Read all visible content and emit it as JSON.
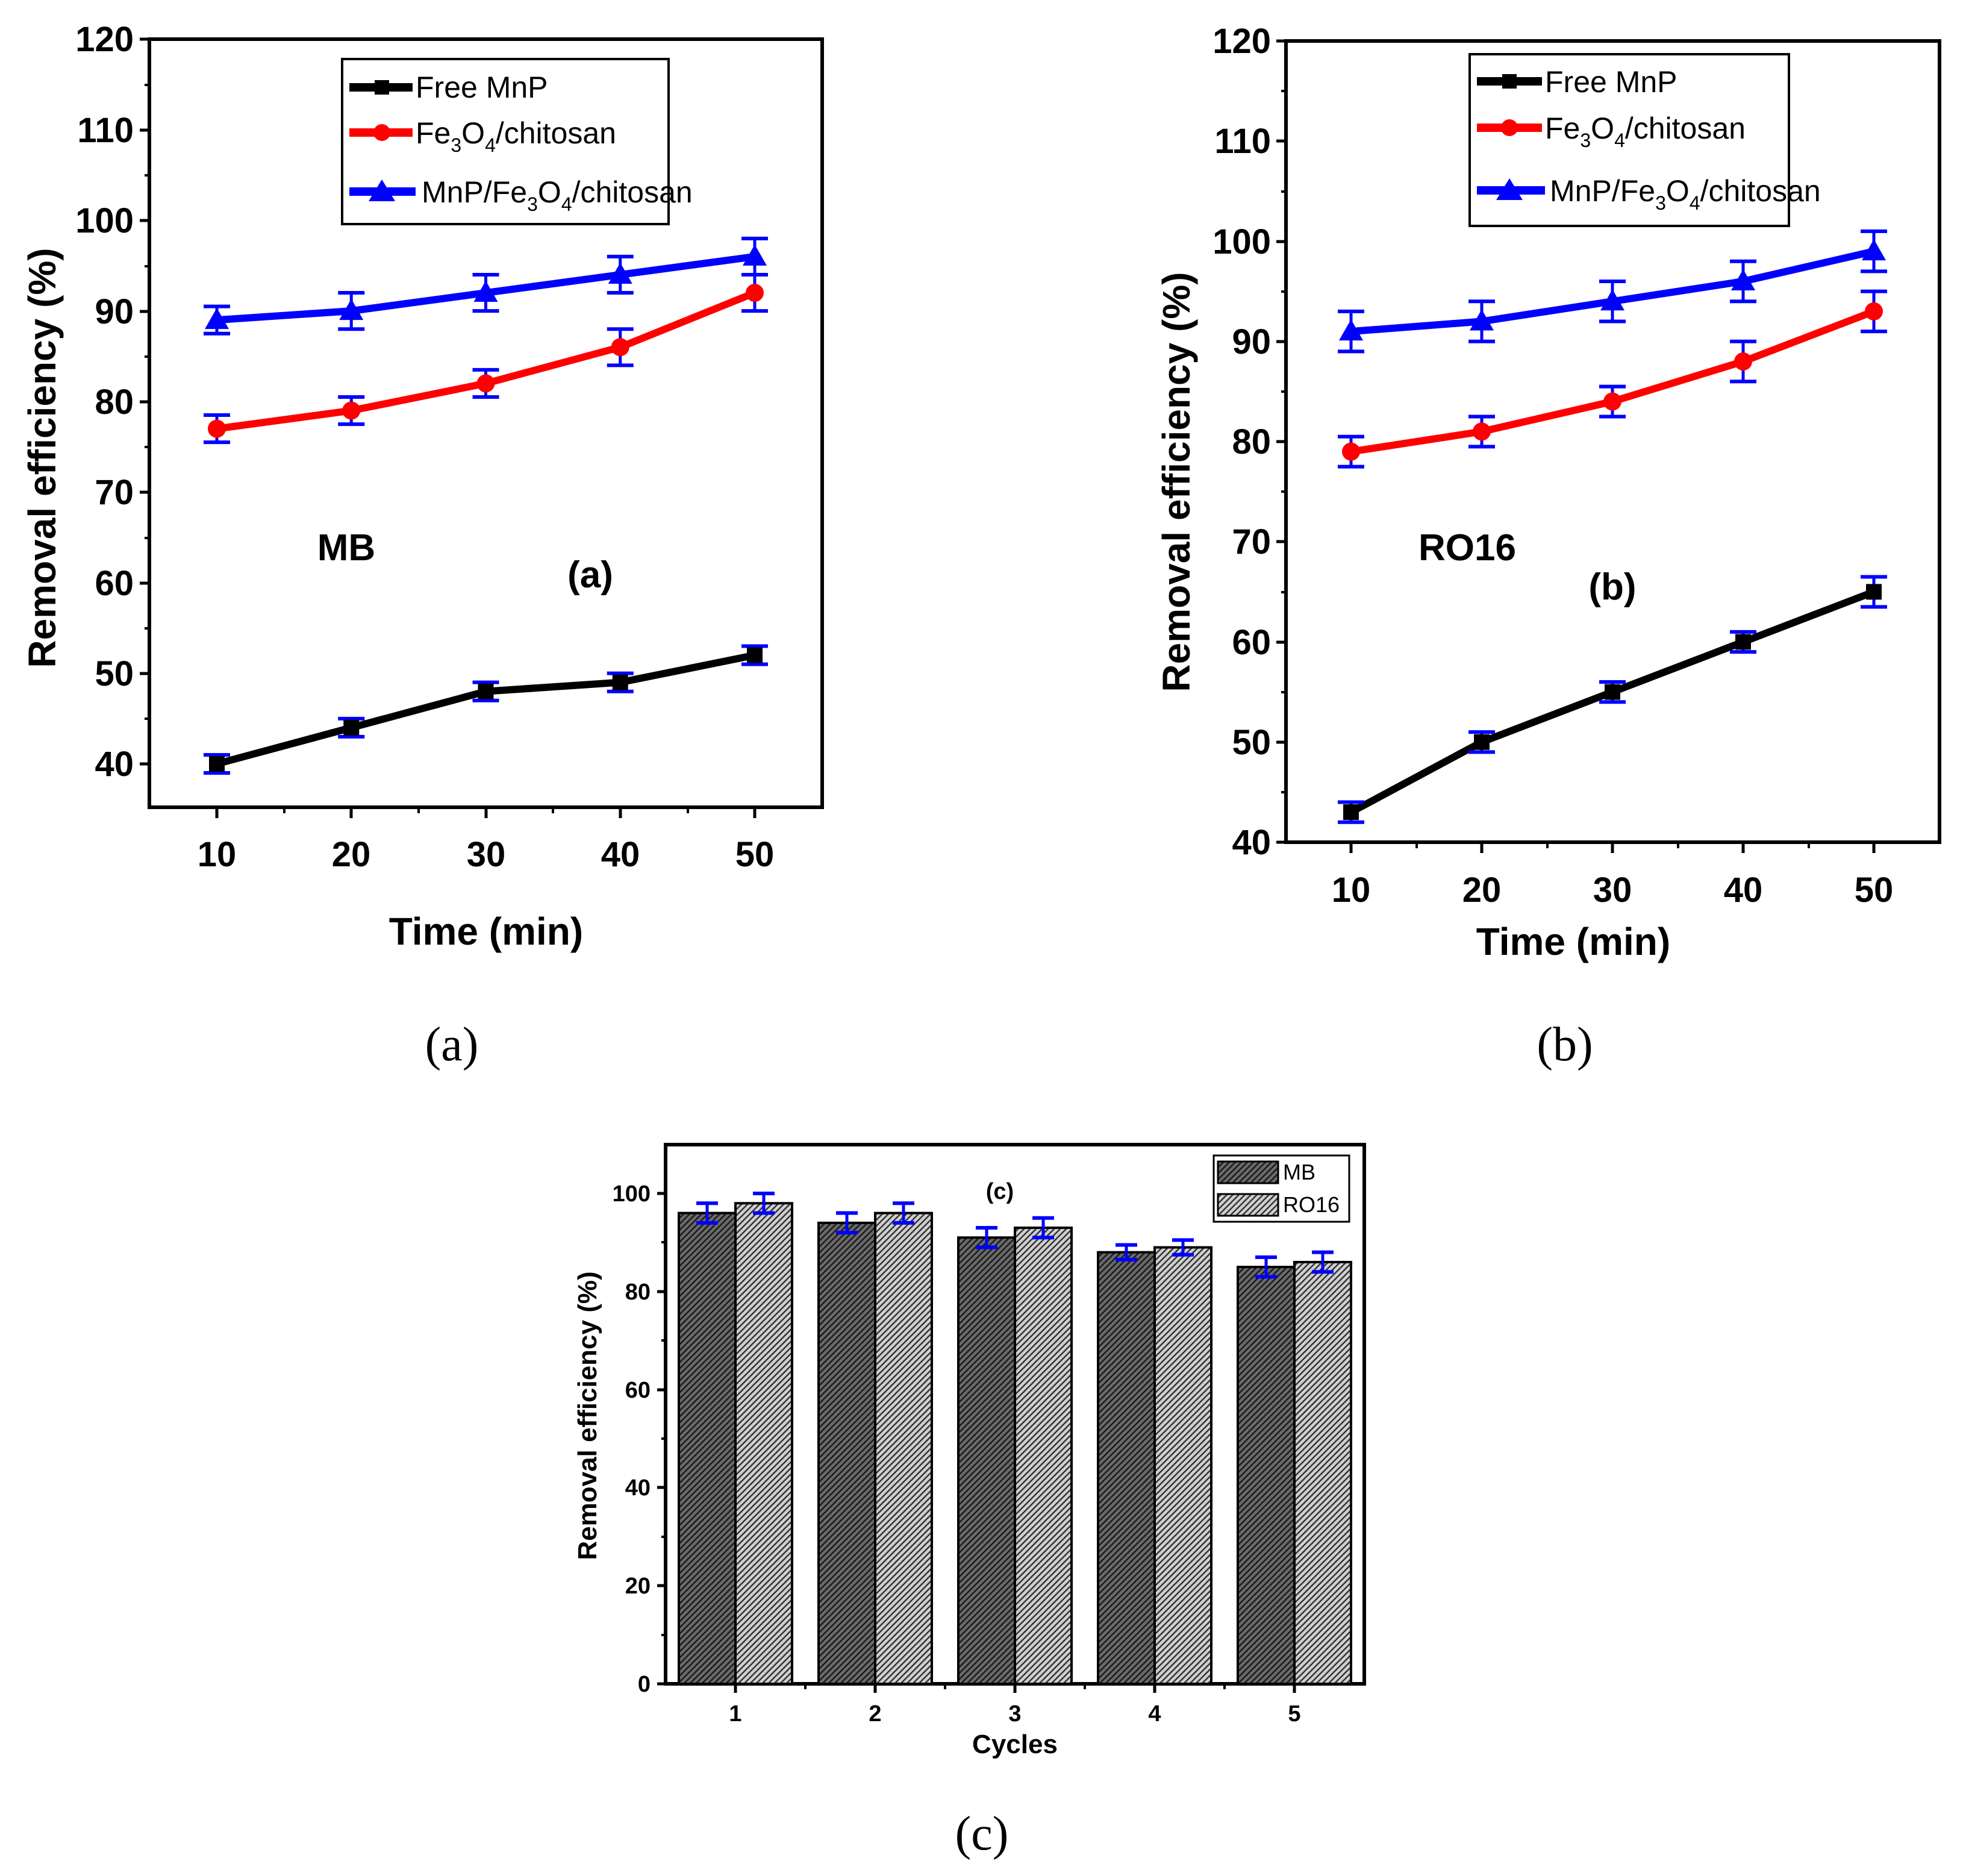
{
  "colors": {
    "free_mnp": "#000000",
    "fe3o4_chitosan": "#ff0000",
    "mnp_fe3o4_chitosan": "#0000ff",
    "error_bar": "#0000ff",
    "mb_bar": "#555555",
    "ro16_bar": "#bbbbbb"
  },
  "captions": {
    "a": "(a)",
    "b": "(b)",
    "c": "(c)"
  },
  "chart_data": [
    {
      "type": "line",
      "panel": "a",
      "xlabel": "Time (min)",
      "ylabel": "Removal efficiency (%)",
      "annotation": "MB",
      "panel_tag": "(a)",
      "x": [
        10,
        20,
        30,
        40,
        50
      ],
      "xticks": [
        "10",
        "20",
        "30",
        "40",
        "50"
      ],
      "xlim": [
        5,
        55
      ],
      "ylim": [
        35,
        120
      ],
      "yticks": [
        "40",
        "50",
        "60",
        "70",
        "80",
        "90",
        "100",
        "110",
        "120"
      ],
      "legend": {
        "entries": [
          "Free MnP",
          "Fe3O4/chitosan",
          "MnP/Fe3O4/chitosan"
        ],
        "line1": "Free MnP",
        "line2_a": "Fe",
        "line2_sub1": "3",
        "line2_b": "O",
        "line2_sub2": "4",
        "line2_c": "/chitosan",
        "line3_a": "MnP/Fe",
        "line3_sub1": "3",
        "line3_b": "O",
        "line3_sub2": "4",
        "line3_c": "/chitosan"
      },
      "series": [
        {
          "name": "Free MnP",
          "values": [
            40,
            44,
            48,
            49,
            52
          ],
          "errors": [
            1,
            1,
            1,
            1,
            1
          ]
        },
        {
          "name": "Fe3O4/chitosan",
          "values": [
            77,
            79,
            82,
            86,
            92
          ],
          "errors": [
            1.5,
            1.5,
            1.5,
            2,
            2
          ]
        },
        {
          "name": "MnP/Fe3O4/chitosan",
          "values": [
            89,
            90,
            92,
            94,
            96
          ],
          "errors": [
            1.5,
            2,
            2,
            2,
            2
          ]
        }
      ]
    },
    {
      "type": "line",
      "panel": "b",
      "xlabel": "Time (min)",
      "ylabel": "Removal efficiency (%)",
      "annotation": "RO16",
      "panel_tag": "(b)",
      "x": [
        10,
        20,
        30,
        40,
        50
      ],
      "xticks": [
        "10",
        "20",
        "30",
        "40",
        "50"
      ],
      "xlim": [
        5,
        55
      ],
      "ylim": [
        40,
        120
      ],
      "yticks": [
        "40",
        "50",
        "60",
        "70",
        "80",
        "90",
        "100",
        "110",
        "120"
      ],
      "legend": {
        "entries": [
          "Free MnP",
          "Fe3O4/chitosan",
          "MnP/Fe3O4/chitosan"
        ],
        "line1": "Free MnP",
        "line2_a": "Fe",
        "line2_sub1": "3",
        "line2_b": "O",
        "line2_sub2": "4",
        "line2_c": "/chitosan",
        "line3_a": "MnP/Fe",
        "line3_sub1": "3",
        "line3_b": "O",
        "line3_sub2": "4",
        "line3_c": "/chitosan"
      },
      "series": [
        {
          "name": "Free MnP",
          "values": [
            43,
            50,
            55,
            60,
            65
          ],
          "errors": [
            1,
            1,
            1,
            1,
            1.5
          ]
        },
        {
          "name": "Fe3O4/chitosan",
          "values": [
            79,
            81,
            84,
            88,
            93
          ],
          "errors": [
            1.5,
            1.5,
            1.5,
            2,
            2
          ]
        },
        {
          "name": "MnP/Fe3O4/chitosan",
          "values": [
            91,
            92,
            94,
            96,
            99
          ],
          "errors": [
            2,
            2,
            2,
            2,
            2
          ]
        }
      ]
    },
    {
      "type": "bar",
      "panel": "c",
      "xlabel": "Cycles",
      "ylabel": "Removal efficiency (%)",
      "panel_tag": "(c)",
      "categories": [
        "1",
        "2",
        "3",
        "4",
        "5"
      ],
      "ylim": [
        0,
        110
      ],
      "yticks": [
        "0",
        "20",
        "40",
        "60",
        "80",
        "100"
      ],
      "series": [
        {
          "name": "MB",
          "values": [
            96,
            94,
            91,
            88,
            85
          ],
          "errors": [
            2,
            2,
            2,
            1.5,
            2
          ]
        },
        {
          "name": "RO16",
          "values": [
            98,
            96,
            93,
            89,
            86
          ],
          "errors": [
            2,
            2,
            2,
            1.5,
            2
          ]
        }
      ]
    }
  ]
}
